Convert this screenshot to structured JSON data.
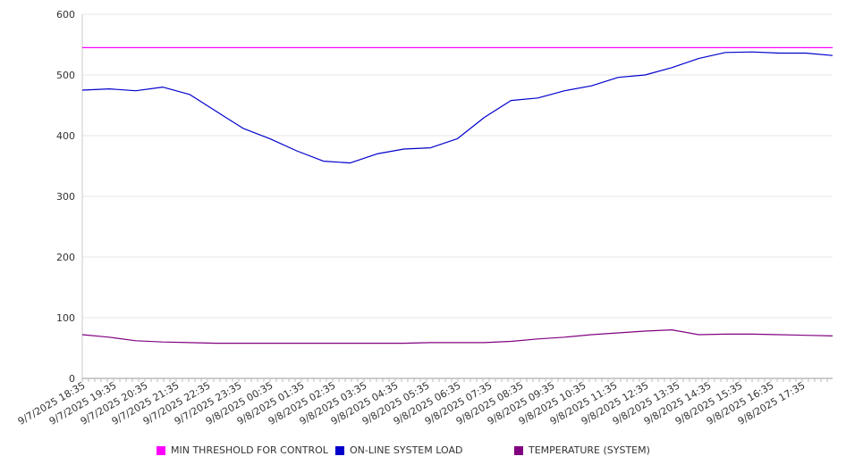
{
  "chart_data": {
    "type": "line",
    "y_ticks": [
      "0",
      "100",
      "200",
      "300",
      "400",
      "500",
      "600"
    ],
    "ylim": [
      0,
      600
    ],
    "x_tick_labels": [
      "9/7/2025 18:35",
      "9/7/2025 19:35",
      "9/7/2025 20:35",
      "9/7/2025 21:35",
      "9/7/2025 22:35",
      "9/7/2025 23:35",
      "9/8/2025 00:35",
      "9/8/2025 01:35",
      "9/8/2025 02:35",
      "9/8/2025 03:35",
      "9/8/2025 04:35",
      "9/8/2025 05:35",
      "9/8/2025 06:35",
      "9/8/2025 07:35",
      "9/8/2025 08:35",
      "9/8/2025 09:35",
      "9/8/2025 10:35",
      "9/8/2025 11:35",
      "9/8/2025 12:35",
      "9/8/2025 13:35",
      "9/8/2025 14:35",
      "9/8/2025 15:35",
      "9/8/2025 16:35",
      "9/8/2025 17:35"
    ],
    "grid": true,
    "legend_position": "bottom",
    "series": [
      {
        "name": "MIN THRESHOLD FOR CONTROL",
        "color": "#ff00ff",
        "values": [
          545,
          545,
          545,
          545,
          545,
          545,
          545,
          545,
          545,
          545,
          545,
          545,
          545,
          545,
          545,
          545,
          545,
          545,
          545,
          545,
          545,
          545,
          545,
          545,
          545
        ]
      },
      {
        "name": "ON-LINE SYSTEM LOAD",
        "color": "#0000cc",
        "values": [
          475,
          477,
          474,
          480,
          468,
          440,
          412,
          395,
          375,
          358,
          355,
          370,
          378,
          380,
          395,
          430,
          458,
          462,
          474,
          482,
          496,
          500,
          512,
          527,
          537,
          538,
          536,
          536,
          532
        ]
      },
      {
        "name": "TEMPERATURE (SYSTEM)",
        "color": "#800080",
        "values": [
          72,
          68,
          62,
          60,
          59,
          58,
          58,
          58,
          58,
          58,
          58,
          58,
          58,
          59,
          59,
          59,
          61,
          65,
          68,
          72,
          75,
          78,
          80,
          72,
          73,
          73,
          72,
          71,
          70
        ]
      }
    ]
  }
}
